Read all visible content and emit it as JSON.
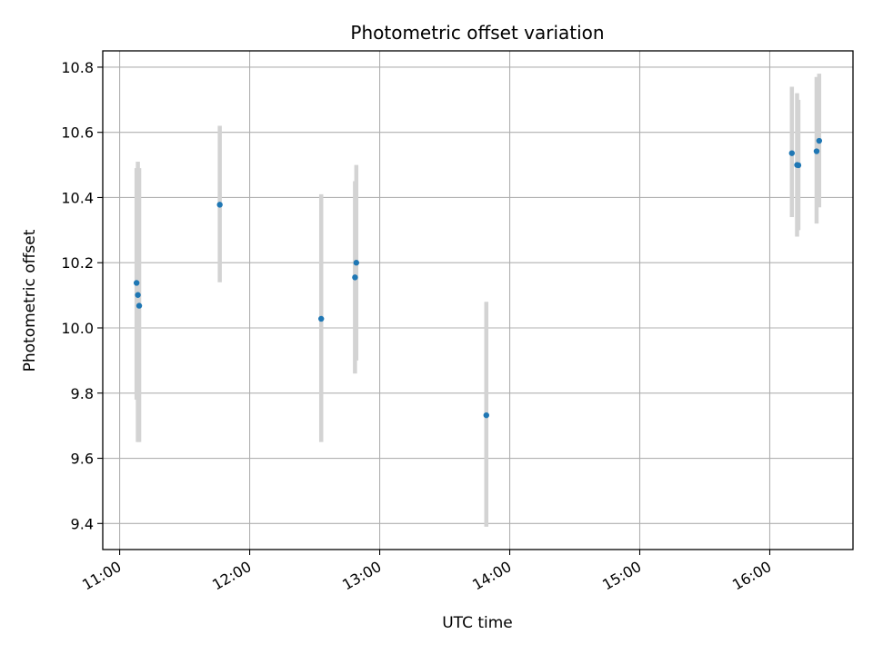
{
  "chart_data": {
    "type": "scatter",
    "title": "Photometric offset variation",
    "xlabel": "UTC time",
    "ylabel": "Photometric offset",
    "x_unit": "hours UTC",
    "xlim": [
      10.87,
      16.64
    ],
    "ylim": [
      9.32,
      10.85
    ],
    "grid": true,
    "x_ticks": [
      {
        "value": 11,
        "label": "11:00"
      },
      {
        "value": 12,
        "label": "12:00"
      },
      {
        "value": 13,
        "label": "13:00"
      },
      {
        "value": 14,
        "label": "14:00"
      },
      {
        "value": 15,
        "label": "15:00"
      },
      {
        "value": 16,
        "label": "16:00"
      }
    ],
    "y_ticks": [
      {
        "value": 9.4,
        "label": "9.4"
      },
      {
        "value": 9.6,
        "label": "9.6"
      },
      {
        "value": 9.8,
        "label": "9.8"
      },
      {
        "value": 10.0,
        "label": "10.0"
      },
      {
        "value": 10.2,
        "label": "10.2"
      },
      {
        "value": 10.4,
        "label": "10.4"
      },
      {
        "value": 10.6,
        "label": "10.6"
      },
      {
        "value": 10.8,
        "label": "10.8"
      }
    ],
    "point_color": "#1f77b4",
    "errorbar_color": "#d3d3d3",
    "points": [
      {
        "x": 11.13,
        "y": 10.138,
        "ylow": 9.78,
        "yhigh": 10.49
      },
      {
        "x": 11.14,
        "y": 10.101,
        "ylow": 9.65,
        "yhigh": 10.51
      },
      {
        "x": 11.15,
        "y": 10.068,
        "ylow": 9.65,
        "yhigh": 10.49
      },
      {
        "x": 11.77,
        "y": 10.378,
        "ylow": 10.14,
        "yhigh": 10.62
      },
      {
        "x": 12.55,
        "y": 10.028,
        "ylow": 9.65,
        "yhigh": 10.41
      },
      {
        "x": 12.81,
        "y": 10.155,
        "ylow": 9.86,
        "yhigh": 10.45
      },
      {
        "x": 12.82,
        "y": 10.2,
        "ylow": 9.9,
        "yhigh": 10.5
      },
      {
        "x": 13.82,
        "y": 9.732,
        "ylow": 9.39,
        "yhigh": 10.08
      },
      {
        "x": 16.17,
        "y": 10.536,
        "ylow": 10.34,
        "yhigh": 10.74
      },
      {
        "x": 16.21,
        "y": 10.5,
        "ylow": 10.28,
        "yhigh": 10.72
      },
      {
        "x": 16.22,
        "y": 10.499,
        "ylow": 10.3,
        "yhigh": 10.7
      },
      {
        "x": 16.36,
        "y": 10.542,
        "ylow": 10.32,
        "yhigh": 10.77
      },
      {
        "x": 16.38,
        "y": 10.574,
        "ylow": 10.37,
        "yhigh": 10.78
      }
    ]
  }
}
